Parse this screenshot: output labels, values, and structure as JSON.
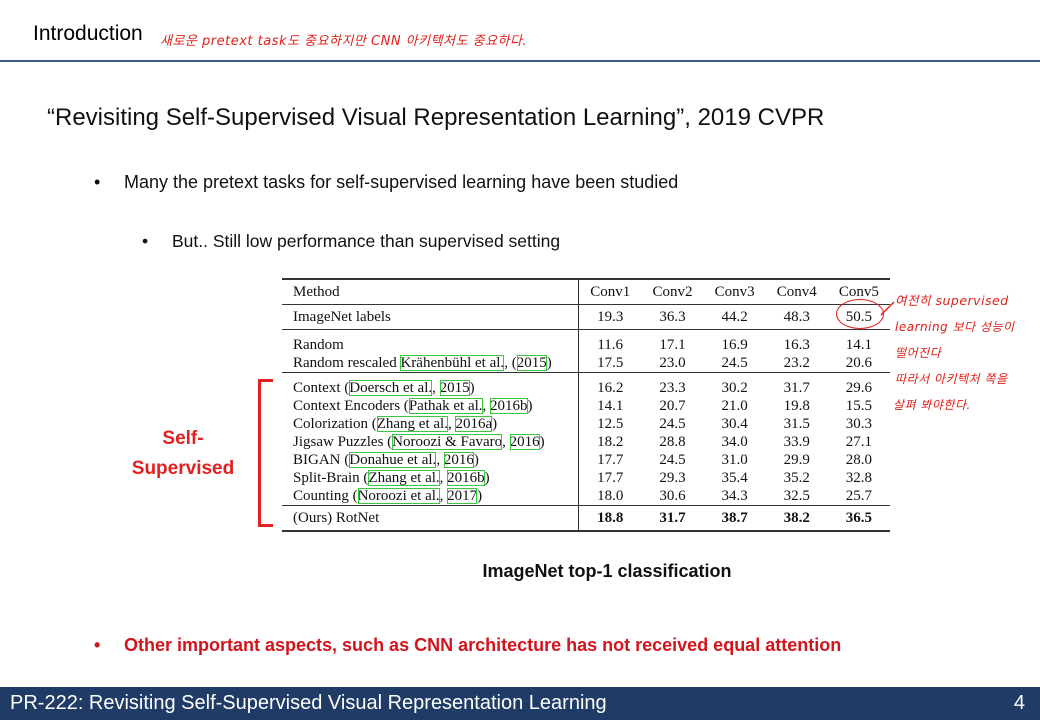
{
  "header": {
    "title": "Introduction",
    "handwritten_note": "새로운 pretext task도 중요하지만 CNN 아키텍처도 중요하다."
  },
  "slide": {
    "title": "“Revisiting Self-Supervised Visual Representation Learning”, 2019 CVPR",
    "bullet1": "Many the pretext tasks for self-supervised learning have been studied",
    "bullet2": "But.. Still low performance than supervised setting",
    "bullet3": "Other important aspects, such as CNN architecture has not received equal attention",
    "bullet_symbol": "•"
  },
  "table": {
    "header": [
      "Method",
      "Conv1",
      "Conv2",
      "Conv3",
      "Conv4",
      "Conv5"
    ],
    "imagenet": {
      "method": "ImageNet labels",
      "values": [
        "19.3",
        "36.3",
        "44.2",
        "48.3",
        "50.5"
      ]
    },
    "random": {
      "method": "Random",
      "values": [
        "11.6",
        "17.1",
        "16.9",
        "16.3",
        "14.1"
      ]
    },
    "random_rescaled": {
      "method": "Random rescaled",
      "ref1": "Krähenbühl et al.",
      "sep": ", (",
      "ref2": "2015",
      "close": ")",
      "values": [
        "17.5",
        "23.0",
        "24.5",
        "23.2",
        "20.6"
      ]
    },
    "context": {
      "method": "Context (",
      "ref1": "Doersch et al.",
      "sep": ", ",
      "ref2": "2015",
      "close": ")",
      "values": [
        "16.2",
        "23.3",
        "30.2",
        "31.7",
        "29.6"
      ]
    },
    "context_encoders": {
      "method": "Context Encoders (",
      "ref1": "Pathak et al.",
      "sep": ", ",
      "ref2": "2016b",
      "close": ")",
      "values": [
        "14.1",
        "20.7",
        "21.0",
        "19.8",
        "15.5"
      ]
    },
    "colorization": {
      "method": "Colorization (",
      "ref1": "Zhang et al.",
      "sep": ", ",
      "ref2": "2016a",
      "close": ")",
      "values": [
        "12.5",
        "24.5",
        "30.4",
        "31.5",
        "30.3"
      ]
    },
    "jigsaw": {
      "method": "Jigsaw Puzzles (",
      "ref1": "Noroozi & Favaro",
      "sep": ", ",
      "ref2": "2016",
      "close": ")",
      "values": [
        "18.2",
        "28.8",
        "34.0",
        "33.9",
        "27.1"
      ]
    },
    "bigan": {
      "method": "BIGAN (",
      "ref1": "Donahue et al.",
      "sep": ", ",
      "ref2": "2016",
      "close": ")",
      "values": [
        "17.7",
        "24.5",
        "31.0",
        "29.9",
        "28.0"
      ]
    },
    "splitbrain": {
      "method": "Split-Brain (",
      "ref1": "Zhang et al.",
      "sep": ", ",
      "ref2": "2016b",
      "close": ")",
      "values": [
        "17.7",
        "29.3",
        "35.4",
        "35.2",
        "32.8"
      ]
    },
    "counting": {
      "method": "Counting (",
      "ref1": "Noroozi et al.",
      "sep": ", ",
      "ref2": "2017",
      "close": ")",
      "values": [
        "18.0",
        "30.6",
        "34.3",
        "32.5",
        "25.7"
      ]
    },
    "ours": {
      "method": "(Ours) RotNet",
      "values": [
        "18.8",
        "31.7",
        "38.7",
        "38.2",
        "36.5"
      ]
    }
  },
  "annotations": {
    "self_supervised_line1": "Self-",
    "self_supervised_line2": "Supervised",
    "margin_note_1": "여전히 supervised",
    "margin_note_2": "learning 보다 성능이",
    "margin_note_3": "떨어진다",
    "margin_note_4": "따라서 아키텍처 쪽을",
    "margin_note_5": "살펴 봐야한다.",
    "accent_red": "#e22020"
  },
  "caption": "ImageNet top-1 classification",
  "footer": {
    "title": "PR-222: Revisiting Self-Supervised Visual Representation Learning",
    "page": "4",
    "bg": "#1f3b66"
  }
}
